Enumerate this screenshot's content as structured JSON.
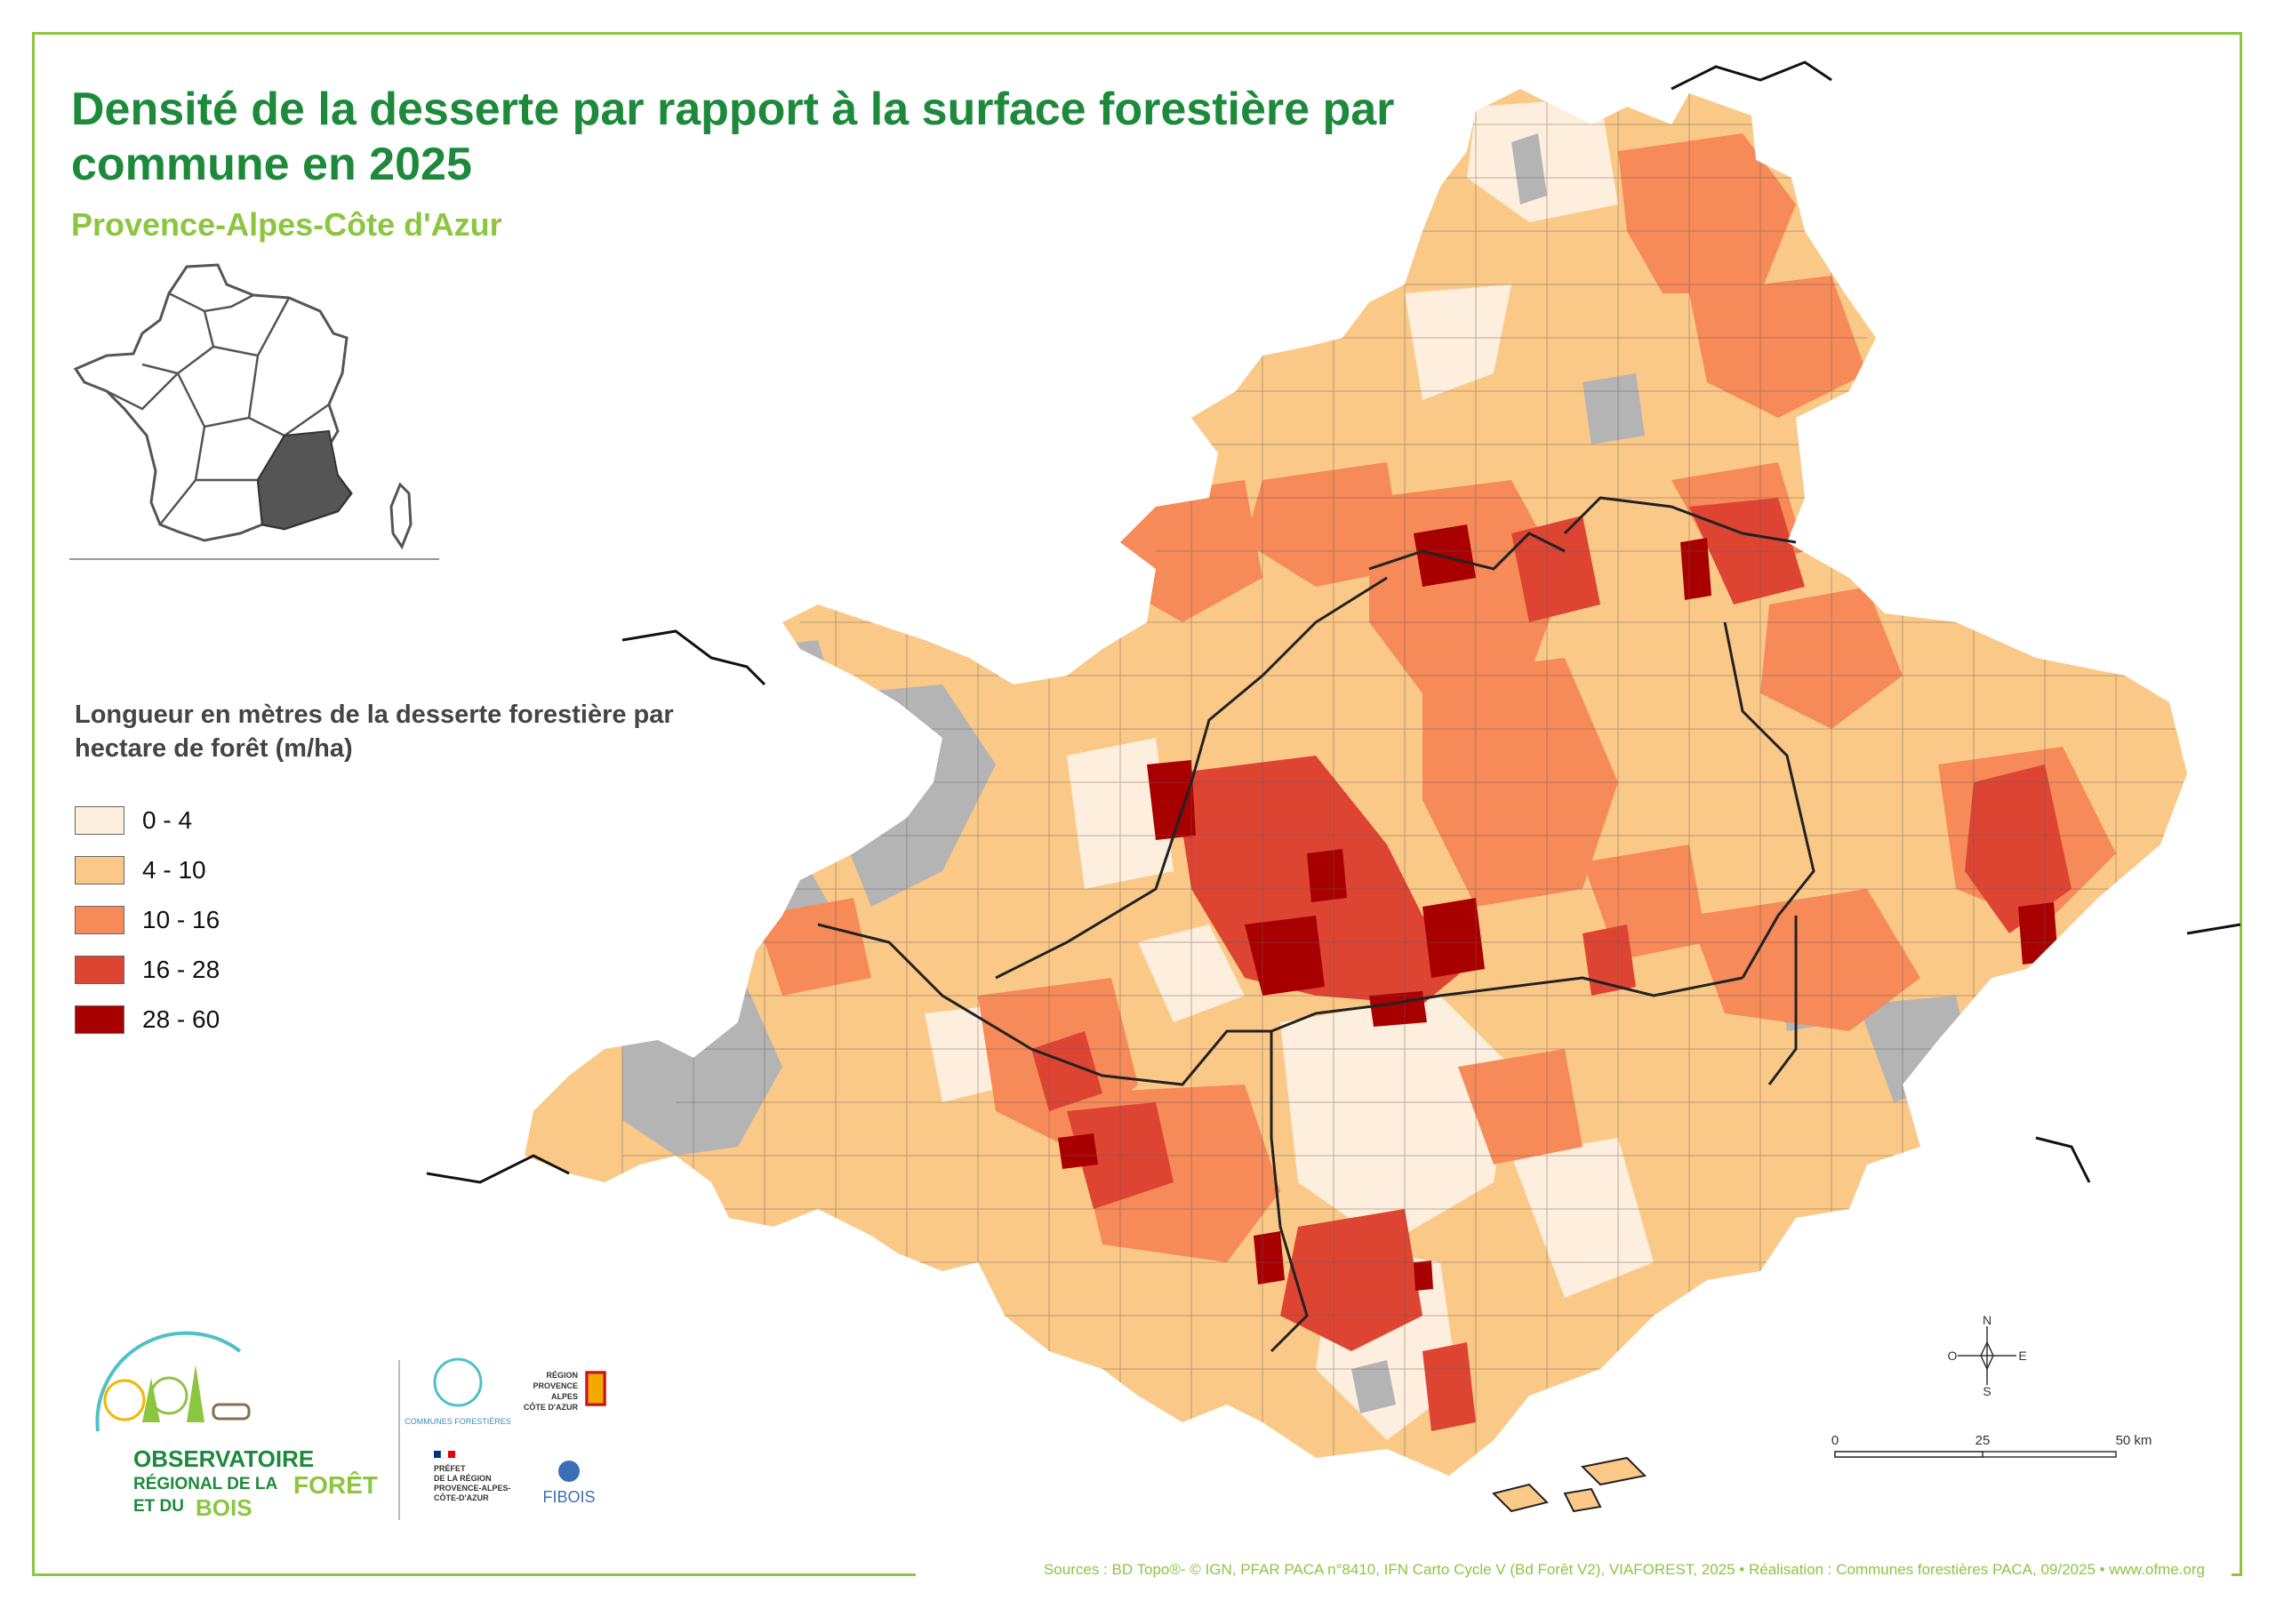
{
  "header": {
    "title": "Densité de la desserte par rapport à la surface forestière par commune en 2025",
    "subtitle": "Provence-Alpes-Côte d'Azur"
  },
  "legend": {
    "title": "Longueur en mètres de la desserte forestière par hectare de forêt (m/ha)",
    "classes": [
      {
        "label": "0 - 4",
        "color": "#fdeedd"
      },
      {
        "label": "4 - 10",
        "color": "#fbc987"
      },
      {
        "label": "10 - 16",
        "color": "#f68a58"
      },
      {
        "label": "16 - 28",
        "color": "#dd4431"
      },
      {
        "label": "28 - 60",
        "color": "#a80000"
      }
    ],
    "no_data_color": "#b4b4b4"
  },
  "compass": {
    "north": "N",
    "south": "S",
    "east": "E",
    "west": "O"
  },
  "scale": {
    "ticks": [
      "0",
      "25",
      "50 km"
    ]
  },
  "logos": {
    "observatoire_line1": "OBSERVATOIRE",
    "observatoire_line2": "RÉGIONAL DE LA",
    "observatoire_line3": "FORÊT",
    "observatoire_line4": "ET DU",
    "observatoire_line5": "BOIS",
    "communes": "COMMUNES FORESTIÈRES",
    "region_line1": "RÉGION",
    "region_line2": "PROVENCE",
    "region_line3": "ALPES",
    "region_line4": "CÔTE D'AZUR",
    "prefet_line1": "PRÉFET",
    "prefet_line2": "DE LA RÉGION",
    "prefet_line3": "PROVENCE-ALPES-",
    "prefet_line4": "CÔTE-D'AZUR",
    "fibois": "FIBOIS"
  },
  "footer": {
    "sources": "Sources : BD Topo®- © IGN, PFAR PACA n°8410, IFN Carto Cycle V (Bd Forêt V2), VIAFOREST, 2025 • Réalisation : Communes forestières PACA, 09/2025 • www.ofme.org"
  }
}
